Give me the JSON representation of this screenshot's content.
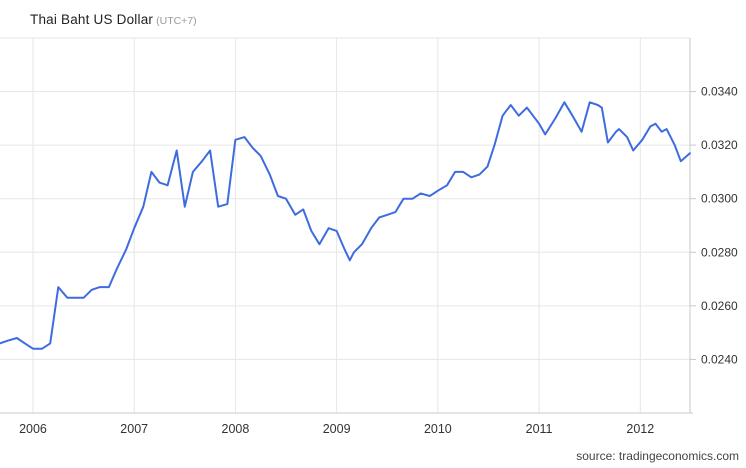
{
  "title": {
    "text": "Thai Baht US Dollar",
    "timezone": "(UTC+7)"
  },
  "source": "source: tradingeconomics.com",
  "colors": {
    "line": "#3e6ce0",
    "grid": "#e6e6e6",
    "axis": "#c8c8c8",
    "tick_label": "#333333",
    "background": "#ffffff"
  },
  "chart_data": {
    "type": "line",
    "title": "Thai Baht US Dollar (UTC+7)",
    "xlabel": "",
    "ylabel": "",
    "legend": "none",
    "grid": "on",
    "y_axis_side": "right",
    "xlim": [
      2005.674,
      2012.491
    ],
    "ylim": [
      0.022,
      0.036
    ],
    "y_gridlines": [
      0.024,
      0.026,
      0.028,
      0.03,
      0.032,
      0.034,
      0.036
    ],
    "y_ticks": [
      {
        "value": 0.024,
        "label": "0.0240"
      },
      {
        "value": 0.026,
        "label": "0.0260"
      },
      {
        "value": 0.028,
        "label": "0.0280"
      },
      {
        "value": 0.03,
        "label": "0.0300"
      },
      {
        "value": 0.032,
        "label": "0.0320"
      },
      {
        "value": 0.034,
        "label": "0.0340"
      }
    ],
    "x_ticks": [
      {
        "value": 2006,
        "label": "2006"
      },
      {
        "value": 2007,
        "label": "2007"
      },
      {
        "value": 2008,
        "label": "2008"
      },
      {
        "value": 2009,
        "label": "2009"
      },
      {
        "value": 2010,
        "label": "2010"
      },
      {
        "value": 2011,
        "label": "2011"
      },
      {
        "value": 2012,
        "label": "2012"
      }
    ],
    "series": [
      {
        "name": "Thai Baht US Dollar",
        "x": [
          2005.67,
          2005.75,
          2005.84,
          2005.92,
          2006.0,
          2006.09,
          2006.17,
          2006.25,
          2006.34,
          2006.41,
          2006.5,
          2006.58,
          2006.66,
          2006.75,
          2006.83,
          2006.92,
          2007.0,
          2007.09,
          2007.17,
          2007.25,
          2007.33,
          2007.42,
          2007.5,
          2007.58,
          2007.67,
          2007.75,
          2007.83,
          2007.92,
          2008.0,
          2008.09,
          2008.17,
          2008.25,
          2008.34,
          2008.42,
          2008.5,
          2008.59,
          2008.67,
          2008.75,
          2008.83,
          2008.92,
          2009.0,
          2009.08,
          2009.13,
          2009.17,
          2009.25,
          2009.34,
          2009.42,
          2009.5,
          2009.58,
          2009.66,
          2009.75,
          2009.83,
          2009.92,
          2010.0,
          2010.09,
          2010.17,
          2010.25,
          2010.33,
          2010.41,
          2010.49,
          2010.56,
          2010.64,
          2010.72,
          2010.8,
          2010.88,
          2011.0,
          2011.06,
          2011.16,
          2011.25,
          2011.33,
          2011.42,
          2011.5,
          2011.58,
          2011.62,
          2011.68,
          2011.76,
          2011.79,
          2011.87,
          2011.93,
          2012.02,
          2012.1,
          2012.15,
          2012.21,
          2012.26,
          2012.34,
          2012.4,
          2012.49
        ],
        "values": [
          0.0246,
          0.0247,
          0.0248,
          0.0246,
          0.0244,
          0.0244,
          0.0246,
          0.0267,
          0.0263,
          0.0263,
          0.0263,
          0.0266,
          0.0267,
          0.0267,
          0.0274,
          0.0281,
          0.0289,
          0.0297,
          0.031,
          0.0306,
          0.0305,
          0.0318,
          0.0297,
          0.031,
          0.0314,
          0.0318,
          0.0297,
          0.0298,
          0.0322,
          0.0323,
          0.0319,
          0.0316,
          0.0309,
          0.0301,
          0.03,
          0.0294,
          0.0296,
          0.0288,
          0.0283,
          0.0289,
          0.0288,
          0.0281,
          0.0277,
          0.028,
          0.0283,
          0.0289,
          0.0293,
          0.0294,
          0.0295,
          0.03,
          0.03,
          0.0302,
          0.0301,
          0.0303,
          0.0305,
          0.031,
          0.031,
          0.0308,
          0.0309,
          0.0312,
          0.032,
          0.0331,
          0.0335,
          0.0331,
          0.0334,
          0.0328,
          0.0324,
          0.033,
          0.0336,
          0.0331,
          0.0325,
          0.0336,
          0.0335,
          0.0334,
          0.0321,
          0.0325,
          0.0326,
          0.0323,
          0.0318,
          0.0322,
          0.0327,
          0.0328,
          0.0325,
          0.0326,
          0.032,
          0.0314,
          0.0317
        ]
      }
    ]
  }
}
